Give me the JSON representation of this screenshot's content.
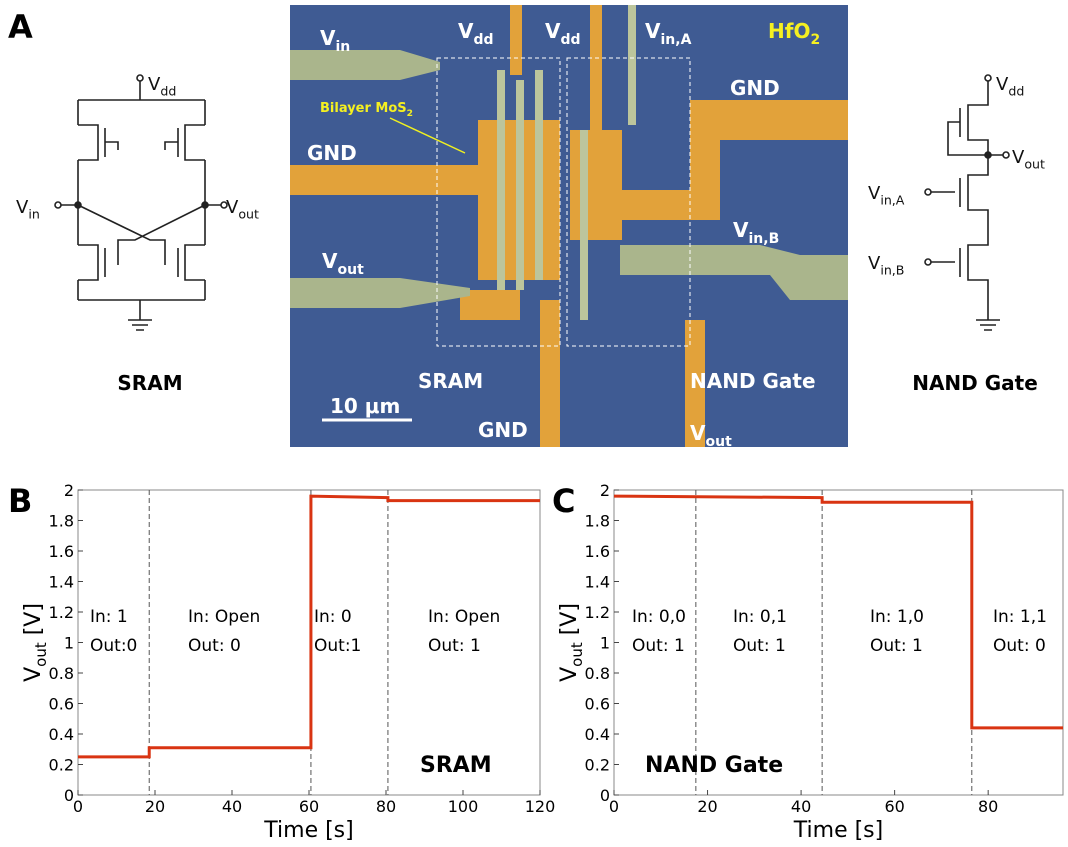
{
  "panel_a": {
    "letter": "A",
    "sram_label": "SRAM",
    "nand_label": "NAND Gate",
    "circuit_labels": [
      {
        "main": "V",
        "sub": "dd"
      },
      {
        "main": "V",
        "sub": "in"
      },
      {
        "main": "V",
        "sub": "out"
      },
      {
        "main": "V",
        "sub": "dd"
      },
      {
        "main": "V",
        "sub": "out"
      },
      {
        "main": "V",
        "sub": "in,A"
      },
      {
        "main": "V",
        "sub": "in,B"
      }
    ],
    "micrograph_labels": [
      {
        "main": "V",
        "sub": "in"
      },
      {
        "main": "V",
        "sub": "dd"
      },
      {
        "main": "V",
        "sub": "dd"
      },
      {
        "main": "V",
        "sub": "in,A"
      },
      {
        "main": "HfO",
        "sub": "2"
      },
      {
        "main": "Bilayer MoS",
        "sub": "2"
      },
      {
        "main": "GND"
      },
      {
        "main": "GND"
      },
      {
        "main": "V",
        "sub": "in,B"
      },
      {
        "main": "V",
        "sub": "out"
      },
      {
        "main": "SRAM"
      },
      {
        "main": "NAND Gate"
      },
      {
        "main": "10 μm"
      },
      {
        "main": "GND"
      },
      {
        "main": "V",
        "sub": "out"
      }
    ]
  },
  "chart_data": [
    {
      "type": "line",
      "letter": "B",
      "xlabel": "Time [s]",
      "ylabel": {
        "main": "V",
        "sub": "out",
        "rest": " [V]"
      },
      "xlim": [
        0,
        120
      ],
      "xticks": [
        0,
        20,
        40,
        60,
        80,
        100,
        120
      ],
      "ylim": [
        0,
        2
      ],
      "yticks": [
        0,
        0.2,
        0.4,
        0.6,
        0.8,
        1,
        1.2,
        1.4,
        1.6,
        1.8,
        2
      ],
      "dividers": [
        18.5,
        60.5,
        80.5
      ],
      "series": [
        {
          "color": "#d93412",
          "x": [
            0,
            18.5,
            18.5,
            60.5,
            60.5,
            80.5,
            80.5,
            120
          ],
          "values": [
            0.25,
            0.25,
            0.31,
            0.31,
            1.96,
            1.95,
            1.93,
            1.93
          ]
        }
      ],
      "annotations": [
        "In:   1",
        "Out:0",
        "In: Open",
        "Out:  0",
        "In:   0",
        "Out:1",
        "In: Open",
        "Out:  1"
      ],
      "label": "SRAM"
    },
    {
      "type": "line",
      "letter": "C",
      "xlabel": "Time [s]",
      "ylabel": {
        "main": "V",
        "sub": "out",
        "rest": " [V]"
      },
      "xlim": [
        0,
        96
      ],
      "xticks": [
        0,
        20,
        40,
        60,
        80
      ],
      "ylim": [
        0,
        2
      ],
      "yticks": [
        0,
        0.2,
        0.4,
        0.6,
        0.8,
        1,
        1.2,
        1.4,
        1.6,
        1.8,
        2
      ],
      "dividers": [
        17.5,
        44.5,
        76.5
      ],
      "series": [
        {
          "color": "#d93412",
          "x": [
            0,
            44.5,
            44.5,
            76.5,
            76.5,
            96
          ],
          "values": [
            1.96,
            1.95,
            1.92,
            1.92,
            0.44,
            0.44
          ]
        }
      ],
      "annotations": [
        "In: 0,0",
        "Out: 1",
        "In: 0,1",
        "Out: 1",
        "In: 1,0",
        "Out: 1",
        "In: 1,1",
        "Out: 0"
      ],
      "label": "NAND Gate"
    }
  ]
}
